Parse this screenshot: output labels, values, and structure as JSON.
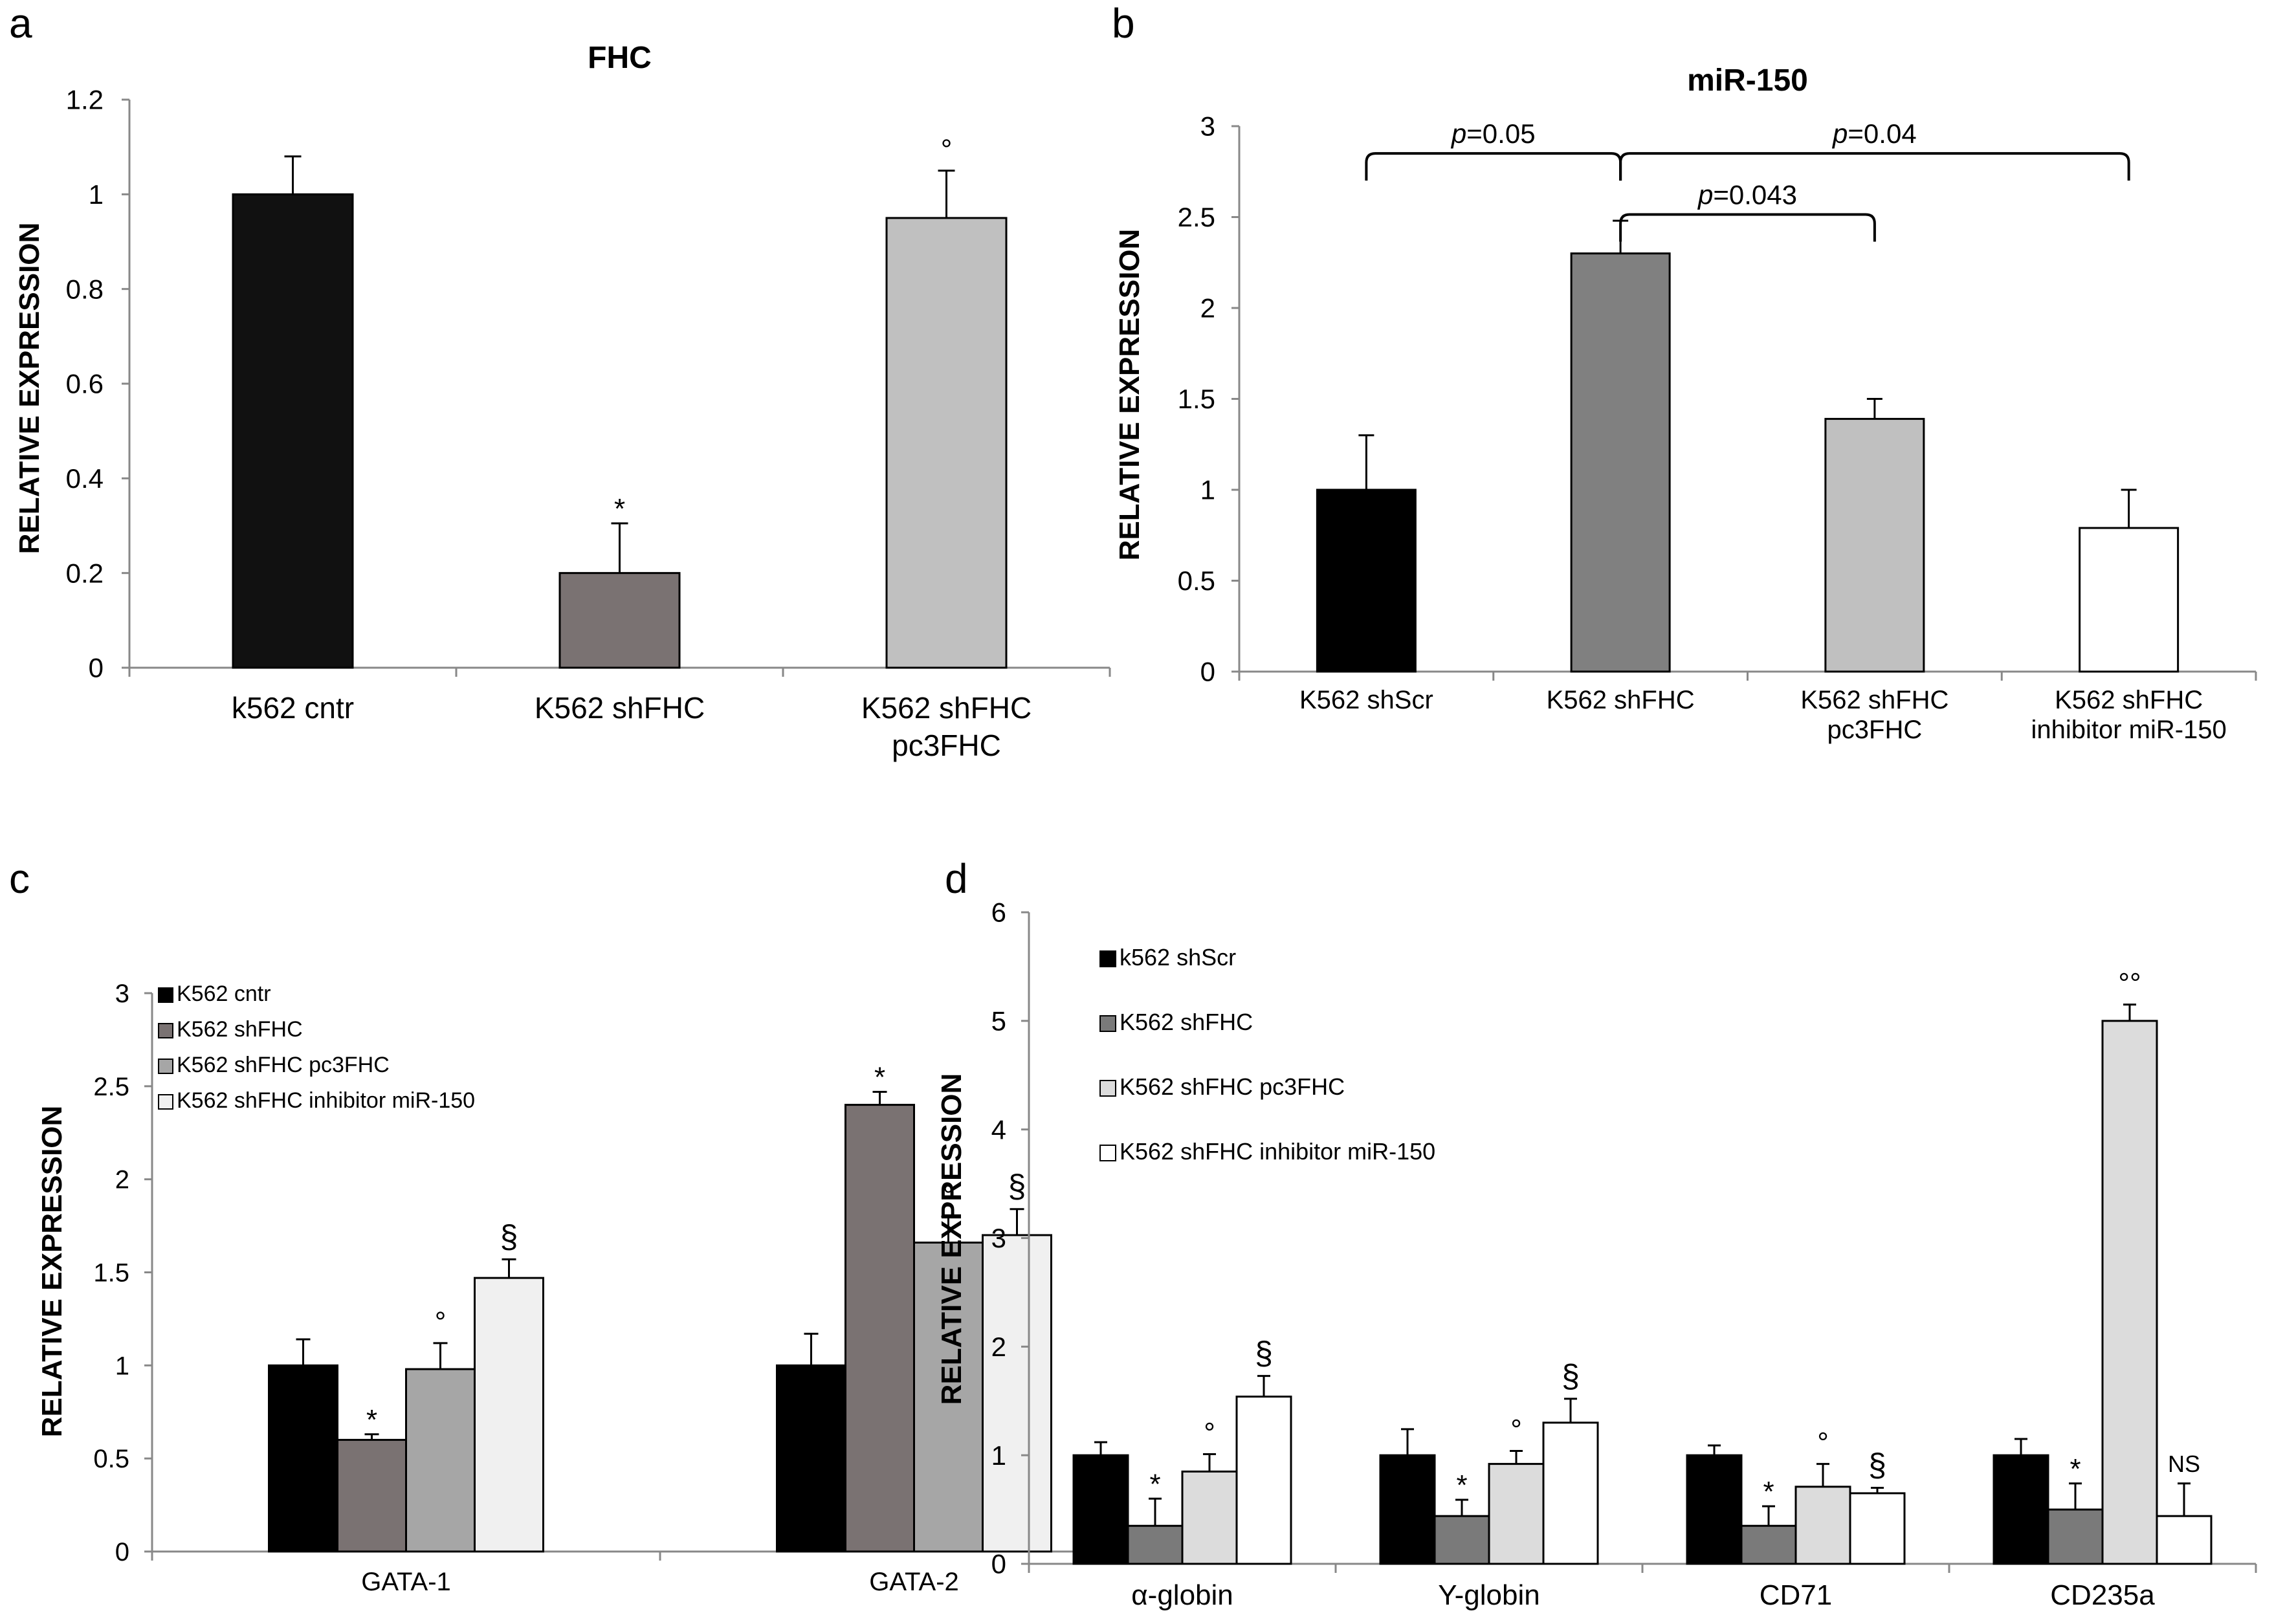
{
  "chart_data": [
    {
      "panel": "a",
      "type": "bar",
      "title": "FHC",
      "ylabel": "RELATIVE EXPRESSION",
      "ylim": [
        0,
        1.2
      ],
      "yticks": [
        "0",
        "0.2",
        "0.4",
        "0.6",
        "0.8",
        "1",
        "1.2"
      ],
      "categories": [
        "k562 cntr",
        "K562 shFHC",
        "K562 shFHC pc3FHC"
      ],
      "category_lines": [
        [
          "k562 cntr"
        ],
        [
          "K562 shFHC"
        ],
        [
          "K562 shFHC",
          "pc3FHC"
        ]
      ],
      "values": [
        1.0,
        0.2,
        0.95
      ],
      "errors": [
        0.08,
        0.105,
        0.1
      ],
      "markers": [
        "",
        "*",
        "°"
      ],
      "colors": [
        "#111111",
        "#7a7272",
        "#c0c0c0"
      ]
    },
    {
      "panel": "b",
      "type": "bar",
      "title": "miR-150",
      "ylabel": "RELATIVE EXPRESSION",
      "ylim": [
        0,
        3
      ],
      "yticks": [
        "0",
        "0.5",
        "1",
        "1.5",
        "2",
        "2.5",
        "3"
      ],
      "categories": [
        "K562 shScr",
        "K562 shFHC",
        "K562 shFHC pc3FHC",
        "K562 shFHC inhibitor miR-150"
      ],
      "category_lines": [
        [
          "K562 shScr"
        ],
        [
          "K562 shFHC"
        ],
        [
          "K562 shFHC",
          "pc3FHC"
        ],
        [
          "K562 shFHC",
          "inhibitor miR-150"
        ]
      ],
      "values": [
        1.0,
        2.3,
        1.39,
        0.79
      ],
      "errors": [
        0.3,
        0.18,
        0.11,
        0.21
      ],
      "markers": [
        "",
        "",
        "",
        ""
      ],
      "colors": [
        "#000000",
        "#808080",
        "#c0c0c0",
        "#ffffff"
      ],
      "annotations": [
        {
          "p": "p",
          "label": "=0.05",
          "from": 0,
          "to": 1,
          "level": 2.85
        },
        {
          "p": "p",
          "label": "=0.04",
          "from": 1,
          "to": 3,
          "level": 2.85
        },
        {
          "p": "p",
          "label": "=0.043",
          "from": 1,
          "to": 2,
          "level": 2.55
        }
      ]
    },
    {
      "panel": "c",
      "type": "bar",
      "ylabel": "RELATIVE EXPRESSION",
      "ylim": [
        0,
        3
      ],
      "yticks": [
        "0",
        "0.5",
        "1",
        "1.5",
        "2",
        "2.5",
        "3"
      ],
      "categories": [
        "GATA-1",
        "GATA-2"
      ],
      "series": [
        {
          "name": "K562 cntr",
          "color": "#000000",
          "values": [
            1.0,
            1.0
          ],
          "errors": [
            0.14,
            0.17
          ],
          "markers": [
            "",
            ""
          ]
        },
        {
          "name": "K562 shFHC",
          "color": "#7a7272",
          "values": [
            0.6,
            2.4
          ],
          "errors": [
            0.03,
            0.07
          ],
          "markers": [
            "*",
            "*"
          ]
        },
        {
          "name": "K562 shFHC pc3FHC",
          "color": "#a6a6a6",
          "values": [
            0.98,
            1.66
          ],
          "errors": [
            0.14,
            0.14
          ],
          "markers": [
            "°",
            "°"
          ]
        },
        {
          "name": "K562 shFHC inhibitor miR-150",
          "color": "#f0f0f0",
          "values": [
            1.47,
            1.7
          ],
          "errors": [
            0.1,
            0.14
          ],
          "markers": [
            "§",
            "§"
          ]
        }
      ]
    },
    {
      "panel": "d",
      "type": "bar",
      "ylabel": "RELATIVE EXPRESSION",
      "ylim": [
        0,
        6
      ],
      "yticks": [
        "0",
        "1",
        "2",
        "3",
        "4",
        "5",
        "6"
      ],
      "categories": [
        "α-globin",
        "Y-globin",
        "CD71",
        "CD235a"
      ],
      "series": [
        {
          "name": "k562  shScr",
          "color": "#000000",
          "values": [
            1.0,
            1.0,
            1.0,
            1.0
          ],
          "errors": [
            0.12,
            0.24,
            0.09,
            0.15
          ],
          "markers": [
            "",
            "",
            "",
            ""
          ]
        },
        {
          "name": "K562  shFHC",
          "color": "#7a7a7a",
          "values": [
            0.35,
            0.44,
            0.35,
            0.5
          ],
          "errors": [
            0.25,
            0.15,
            0.18,
            0.24
          ],
          "markers": [
            "*",
            "*",
            "*",
            "*"
          ]
        },
        {
          "name": "K562  shFHC pc3FHC",
          "color": "#dcdcdc",
          "values": [
            0.85,
            0.92,
            0.71,
            5.0
          ],
          "errors": [
            0.16,
            0.12,
            0.21,
            0.15
          ],
          "markers": [
            "°",
            "°",
            "°",
            "°°"
          ]
        },
        {
          "name": "K562  shFHC inhibitor  miR-150",
          "color": "#ffffff",
          "values": [
            1.54,
            1.3,
            0.65,
            0.44
          ],
          "errors": [
            0.19,
            0.22,
            0.05,
            0.3
          ],
          "markers": [
            "§",
            "§",
            "§",
            "NS"
          ]
        }
      ]
    }
  ]
}
